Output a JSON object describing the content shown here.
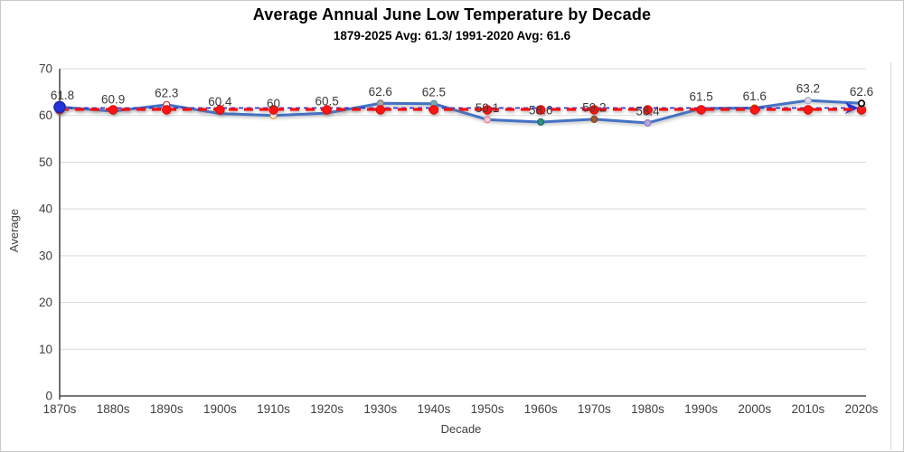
{
  "chart_data": {
    "type": "line",
    "title": "Average Annual June Low Temperature by Decade",
    "subtitle": "1879-2025 Avg: 61.3/ 1991-2020 Avg: 61.6",
    "xlabel": "Decade",
    "ylabel": "Average",
    "ylim": [
      0,
      70
    ],
    "ytick_step": 10,
    "grid": "horizontal",
    "legend": "none",
    "categories": [
      "1870s",
      "1880s",
      "1890s",
      "1900s",
      "1910s",
      "1920s",
      "1930s",
      "1940s",
      "1950s",
      "1960s",
      "1970s",
      "1980s",
      "1990s",
      "2000s",
      "2010s",
      "2020s"
    ],
    "series": [
      {
        "name": "decade-average-line",
        "type": "line",
        "color": "#4472C4",
        "width": 3,
        "values": [
          61.8,
          60.9,
          62.3,
          60.4,
          60,
          60.5,
          62.6,
          62.5,
          59.1,
          58.6,
          59.2,
          58.4,
          61.5,
          61.6,
          63.2,
          62.6
        ],
        "data_labels": [
          "61.8",
          "60.9",
          "62.3",
          "60.4",
          "60",
          "60.5",
          "62.6",
          "62.5",
          "59.1",
          "58.6",
          "59.2",
          "58.4",
          "61.5",
          "61.6",
          "63.2",
          "62.6"
        ],
        "point_markers": [
          {
            "fill": "#2433d9",
            "stroke": "#1b27ae",
            "r": 6,
            "layer": "top"
          },
          null,
          {
            "fill": "#ffffff",
            "stroke": "#d03030",
            "r": 3.5
          },
          null,
          {
            "fill": "#ffffff",
            "stroke": "#e8973c",
            "r": 3.5
          },
          null,
          {
            "fill": "#a8a8a8",
            "stroke": "#7f7f7f",
            "r": 3.5
          },
          {
            "fill": "#79abb5",
            "stroke": "#568c97",
            "r": 3.5
          },
          {
            "fill": "#f6cbd4",
            "stroke": "#e2849b",
            "r": 3.5
          },
          {
            "fill": "#2f8f80",
            "stroke": "#1f6b5e",
            "r": 3.5
          },
          {
            "fill": "#a35b2a",
            "stroke": "#7a441f",
            "r": 3.5
          },
          {
            "fill": "#b5a6db",
            "stroke": "#8e7cc3",
            "r": 3.5
          },
          null,
          {
            "fill": "#ffc000",
            "stroke": "#bf9000",
            "r": 3.5
          },
          {
            "fill": "#d8d8e8",
            "stroke": "#ababc4",
            "r": 3.5
          },
          {
            "fill": "#ffffff",
            "stroke": "#000000",
            "r": 3.2,
            "layer": "top"
          }
        ]
      },
      {
        "name": "avg-1879-2025-line",
        "type": "reference-line",
        "value": 61.3,
        "color": "#ff0f0f",
        "dash": "10 7",
        "width": 3.2,
        "marker": {
          "fill": "#ff1414",
          "stroke": "#d40000",
          "r": 4.8,
          "at": "every-category"
        }
      },
      {
        "name": "avg-1991-2020-line",
        "type": "reference-line",
        "value": 61.6,
        "color": "#2230dc",
        "dash": "5 4",
        "width": 1.6,
        "end_arrow": true
      }
    ],
    "axis_colors": {
      "axis_line": "#262626",
      "gridline": "#d9d9d9",
      "tick_text": "#404040",
      "data_label_text": "#3a3a3a"
    }
  }
}
